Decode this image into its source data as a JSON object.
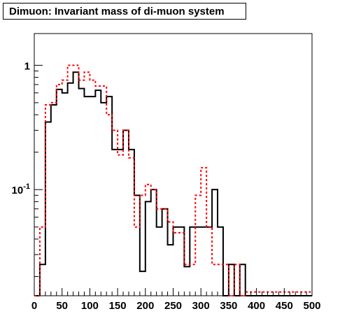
{
  "chart_data": {
    "type": "step",
    "title": "Dimuon: Invariant mass of di-muon system",
    "xlabel": "",
    "ylabel": "",
    "xlim": [
      0,
      500
    ],
    "ylim": [
      0.014,
      1.8
    ],
    "yscale": "log",
    "grid": false,
    "bin_width": 10,
    "x_ticks": [
      "0",
      "50",
      "100",
      "150",
      "200",
      "250",
      "300",
      "350",
      "400",
      "450",
      "500"
    ],
    "y_ticks": [
      {
        "value": 1,
        "base": "1",
        "exp": ""
      },
      {
        "value": 0.1,
        "base": "10",
        "exp": "-1"
      }
    ],
    "series": [
      {
        "color": "#000000",
        "dash": "solid",
        "values": [
          0,
          0.025,
          0.35,
          0.48,
          0.64,
          0.6,
          0.72,
          0.88,
          0.65,
          0.56,
          0.56,
          0.63,
          0.5,
          0.56,
          0.21,
          0.21,
          0.3,
          0.21,
          0.09,
          0.022,
          0.08,
          0.1,
          0.05,
          0.07,
          0.036,
          0.05,
          0.05,
          0.024,
          0.05,
          0.05,
          0.05,
          0.05,
          0.1,
          0.05,
          0,
          0.025,
          0,
          0.025,
          0,
          0,
          0,
          0,
          0,
          0,
          0,
          0,
          0,
          0,
          0,
          0
        ]
      },
      {
        "color": "#ff0000",
        "dash": "dashed",
        "values": [
          0,
          0.05,
          0.48,
          0.5,
          0.7,
          0.76,
          1.0,
          1.0,
          0.76,
          0.88,
          0.76,
          0.68,
          0.68,
          0.4,
          0.3,
          0.19,
          0.3,
          0.18,
          0.05,
          0.09,
          0.11,
          0.1,
          0.07,
          0.07,
          0.055,
          0.045,
          0.045,
          0.025,
          0.025,
          0.09,
          0.15,
          0.05,
          0.025,
          0.025,
          0.025,
          0,
          0.025,
          0,
          0.015,
          0.015,
          0.015,
          0.015,
          0.015,
          0.015,
          0.015,
          0.015,
          0.015,
          0.015,
          0.015,
          0.015
        ]
      }
    ]
  }
}
